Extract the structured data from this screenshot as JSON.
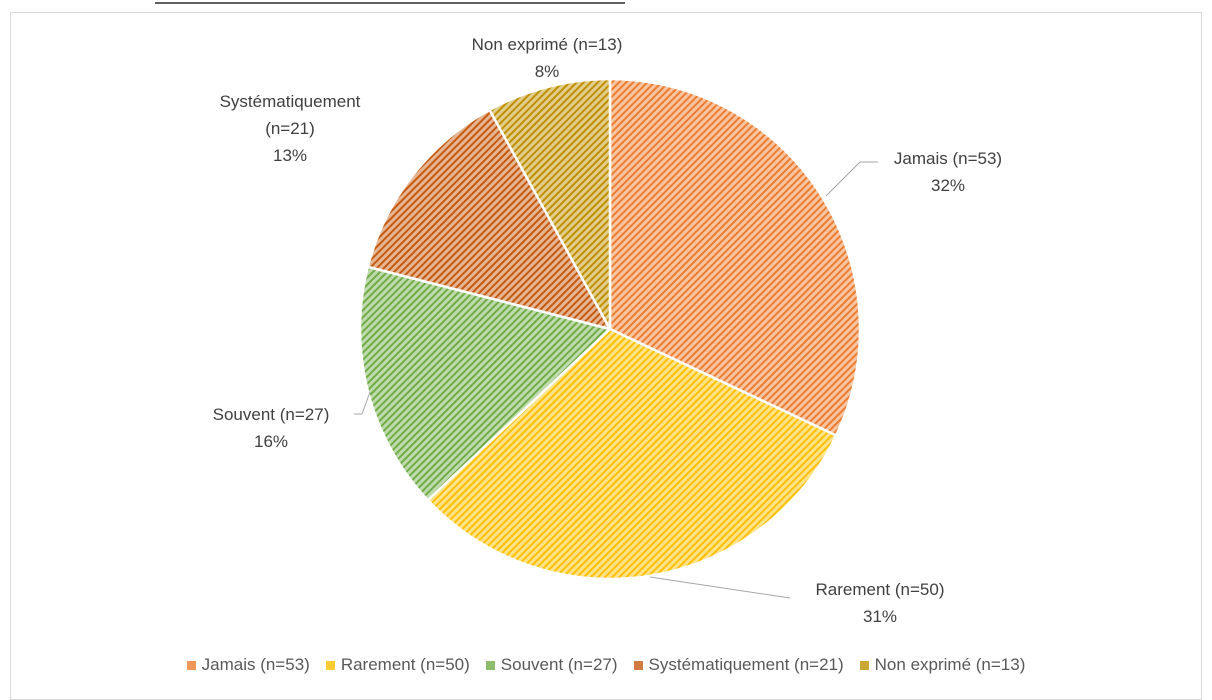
{
  "chart_data": {
    "type": "pie",
    "categories": [
      "Jamais (n=53)",
      "Rarement (n=50)",
      "Souvent (n=27)",
      "Systématiquement (n=21)",
      "Non exprimé (n=13)"
    ],
    "values": [
      32,
      31,
      16,
      13,
      8
    ],
    "value_labels": [
      "32%",
      "31%",
      "16%",
      "13%",
      "8%"
    ],
    "colors": [
      "#ed7d31",
      "#ffc000",
      "#70ad47",
      "#c55a11",
      "#bf9000"
    ],
    "legend": "bottom"
  }
}
